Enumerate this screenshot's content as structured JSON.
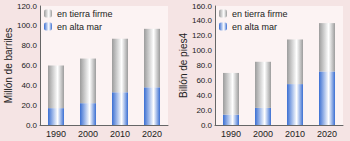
{
  "chart_data": [
    {
      "type": "bar",
      "stacked": true,
      "ylabel": "Millón de barriles",
      "categories": [
        "1990",
        "2000",
        "2010",
        "2020"
      ],
      "series": [
        {
          "name": "en tierra firme",
          "color": "#9c9c9c",
          "values": [
            43,
            45,
            54,
            59
          ]
        },
        {
          "name": "en alta mar",
          "color": "#3b6fd2",
          "values": [
            17,
            22,
            33,
            38
          ]
        }
      ],
      "ylim": [
        0,
        120
      ],
      "yticks": [
        {
          "value": 0,
          "label": "0.0"
        },
        {
          "value": 20,
          "label": "20.0"
        },
        {
          "value": 40,
          "label": "40.0"
        },
        {
          "value": 60,
          "label": "60.0"
        },
        {
          "value": 80,
          "label": "80.0"
        },
        {
          "value": 100,
          "label": "100.0"
        },
        {
          "value": 120,
          "label": "120.0"
        }
      ],
      "legend": "upper left",
      "grid": false
    },
    {
      "type": "bar",
      "stacked": true,
      "ylabel": "Billón de pies4",
      "categories": [
        "1990",
        "2000",
        "2010",
        "2020"
      ],
      "series": [
        {
          "name": "en tierra firme",
          "color": "#9c9c9c",
          "values": [
            56,
            62,
            60,
            65
          ]
        },
        {
          "name": "en alta mar",
          "color": "#3b6fd2",
          "values": [
            14,
            23,
            55,
            72
          ]
        }
      ],
      "ylim": [
        0,
        160
      ],
      "yticks": [
        {
          "value": 0,
          "label": "0.0"
        },
        {
          "value": 20,
          "label": "20.0"
        },
        {
          "value": 40,
          "label": "40.0"
        },
        {
          "value": 60,
          "label": "60.0"
        },
        {
          "value": 80,
          "label": "80.0"
        },
        {
          "value": 100,
          "label": "100.0"
        },
        {
          "value": 120,
          "label": "120.0"
        },
        {
          "value": 140,
          "label": "140.0"
        },
        {
          "value": 160,
          "label": "160.0"
        }
      ],
      "legend": "upper left",
      "grid": false
    }
  ]
}
